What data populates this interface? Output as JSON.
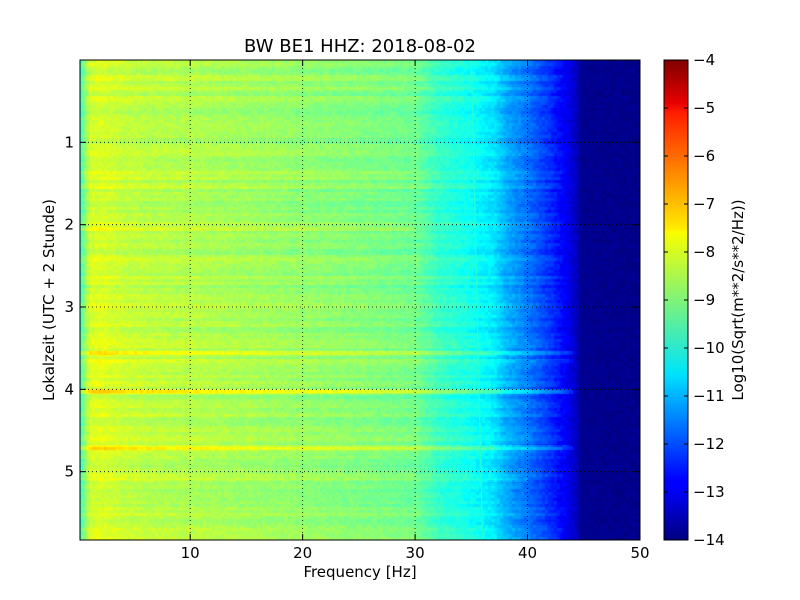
{
  "chart_data": {
    "type": "heatmap",
    "title": "BW BE1 HHZ: 2018-08-02",
    "xlabel": "Frequency [Hz]",
    "ylabel": "Lokalzeit (UTC + 2 Stunde)",
    "xlim": [
      0.2,
      50
    ],
    "ylim": [
      0,
      5.83
    ],
    "y_inverted": true,
    "x_ticks": [
      10,
      20,
      30,
      40,
      50
    ],
    "x_tick_labels": [
      "10",
      "20",
      "30",
      "40",
      "50"
    ],
    "y_ticks": [
      1,
      2,
      3,
      4,
      5
    ],
    "y_tick_labels": [
      "1",
      "2",
      "3",
      "4",
      "5"
    ],
    "grid": true,
    "grid_style": "dotted",
    "colormap": "jet",
    "colorbar": {
      "label": "Log10(Sqrt(m**2/s**2/Hz))",
      "range": [
        -14,
        -4
      ],
      "ticks": [
        -4,
        -5,
        -6,
        -7,
        -8,
        -9,
        -10,
        -11,
        -12,
        -13,
        -14
      ],
      "tick_labels": [
        "−4",
        "−5",
        "−6",
        "−7",
        "−8",
        "−9",
        "−10",
        "−11",
        "−12",
        "−13",
        "−14"
      ]
    },
    "frequency_profile": {
      "frequency_hz": [
        0.2,
        1,
        2,
        4,
        6,
        8,
        10,
        15,
        20,
        25,
        30,
        32,
        35,
        37,
        38,
        40,
        42,
        43.5,
        45,
        50
      ],
      "log10_amplitude": [
        -9.6,
        -8.2,
        -8.1,
        -8.3,
        -8.4,
        -8.45,
        -8.5,
        -8.65,
        -8.8,
        -8.95,
        -9.15,
        -9.7,
        -10.1,
        -10.5,
        -11.0,
        -11.6,
        -12.3,
        -12.9,
        -13.8,
        -13.9
      ]
    },
    "time_bands": [
      {
        "time_h": 2.05,
        "log10_amplitude_offset": 0.3,
        "max_frequency_hz": 30
      },
      {
        "time_h": 3.55,
        "log10_amplitude_offset": 0.6,
        "max_frequency_hz": 44
      },
      {
        "time_h": 3.65,
        "log10_amplitude_offset": 0.5,
        "max_frequency_hz": 44
      },
      {
        "time_h": 4.02,
        "log10_amplitude_offset": 0.8,
        "max_frequency_hz": 44
      },
      {
        "time_h": 4.7,
        "log10_amplitude_offset": 0.6,
        "max_frequency_hz": 44
      },
      {
        "time_h": 5.1,
        "log10_amplitude_offset": 0.3,
        "max_frequency_hz": 40
      }
    ],
    "spectral_line": {
      "frequency_hz_start": 35.0,
      "frequency_hz_end": 36.0,
      "log10_amplitude": -9.8
    }
  }
}
